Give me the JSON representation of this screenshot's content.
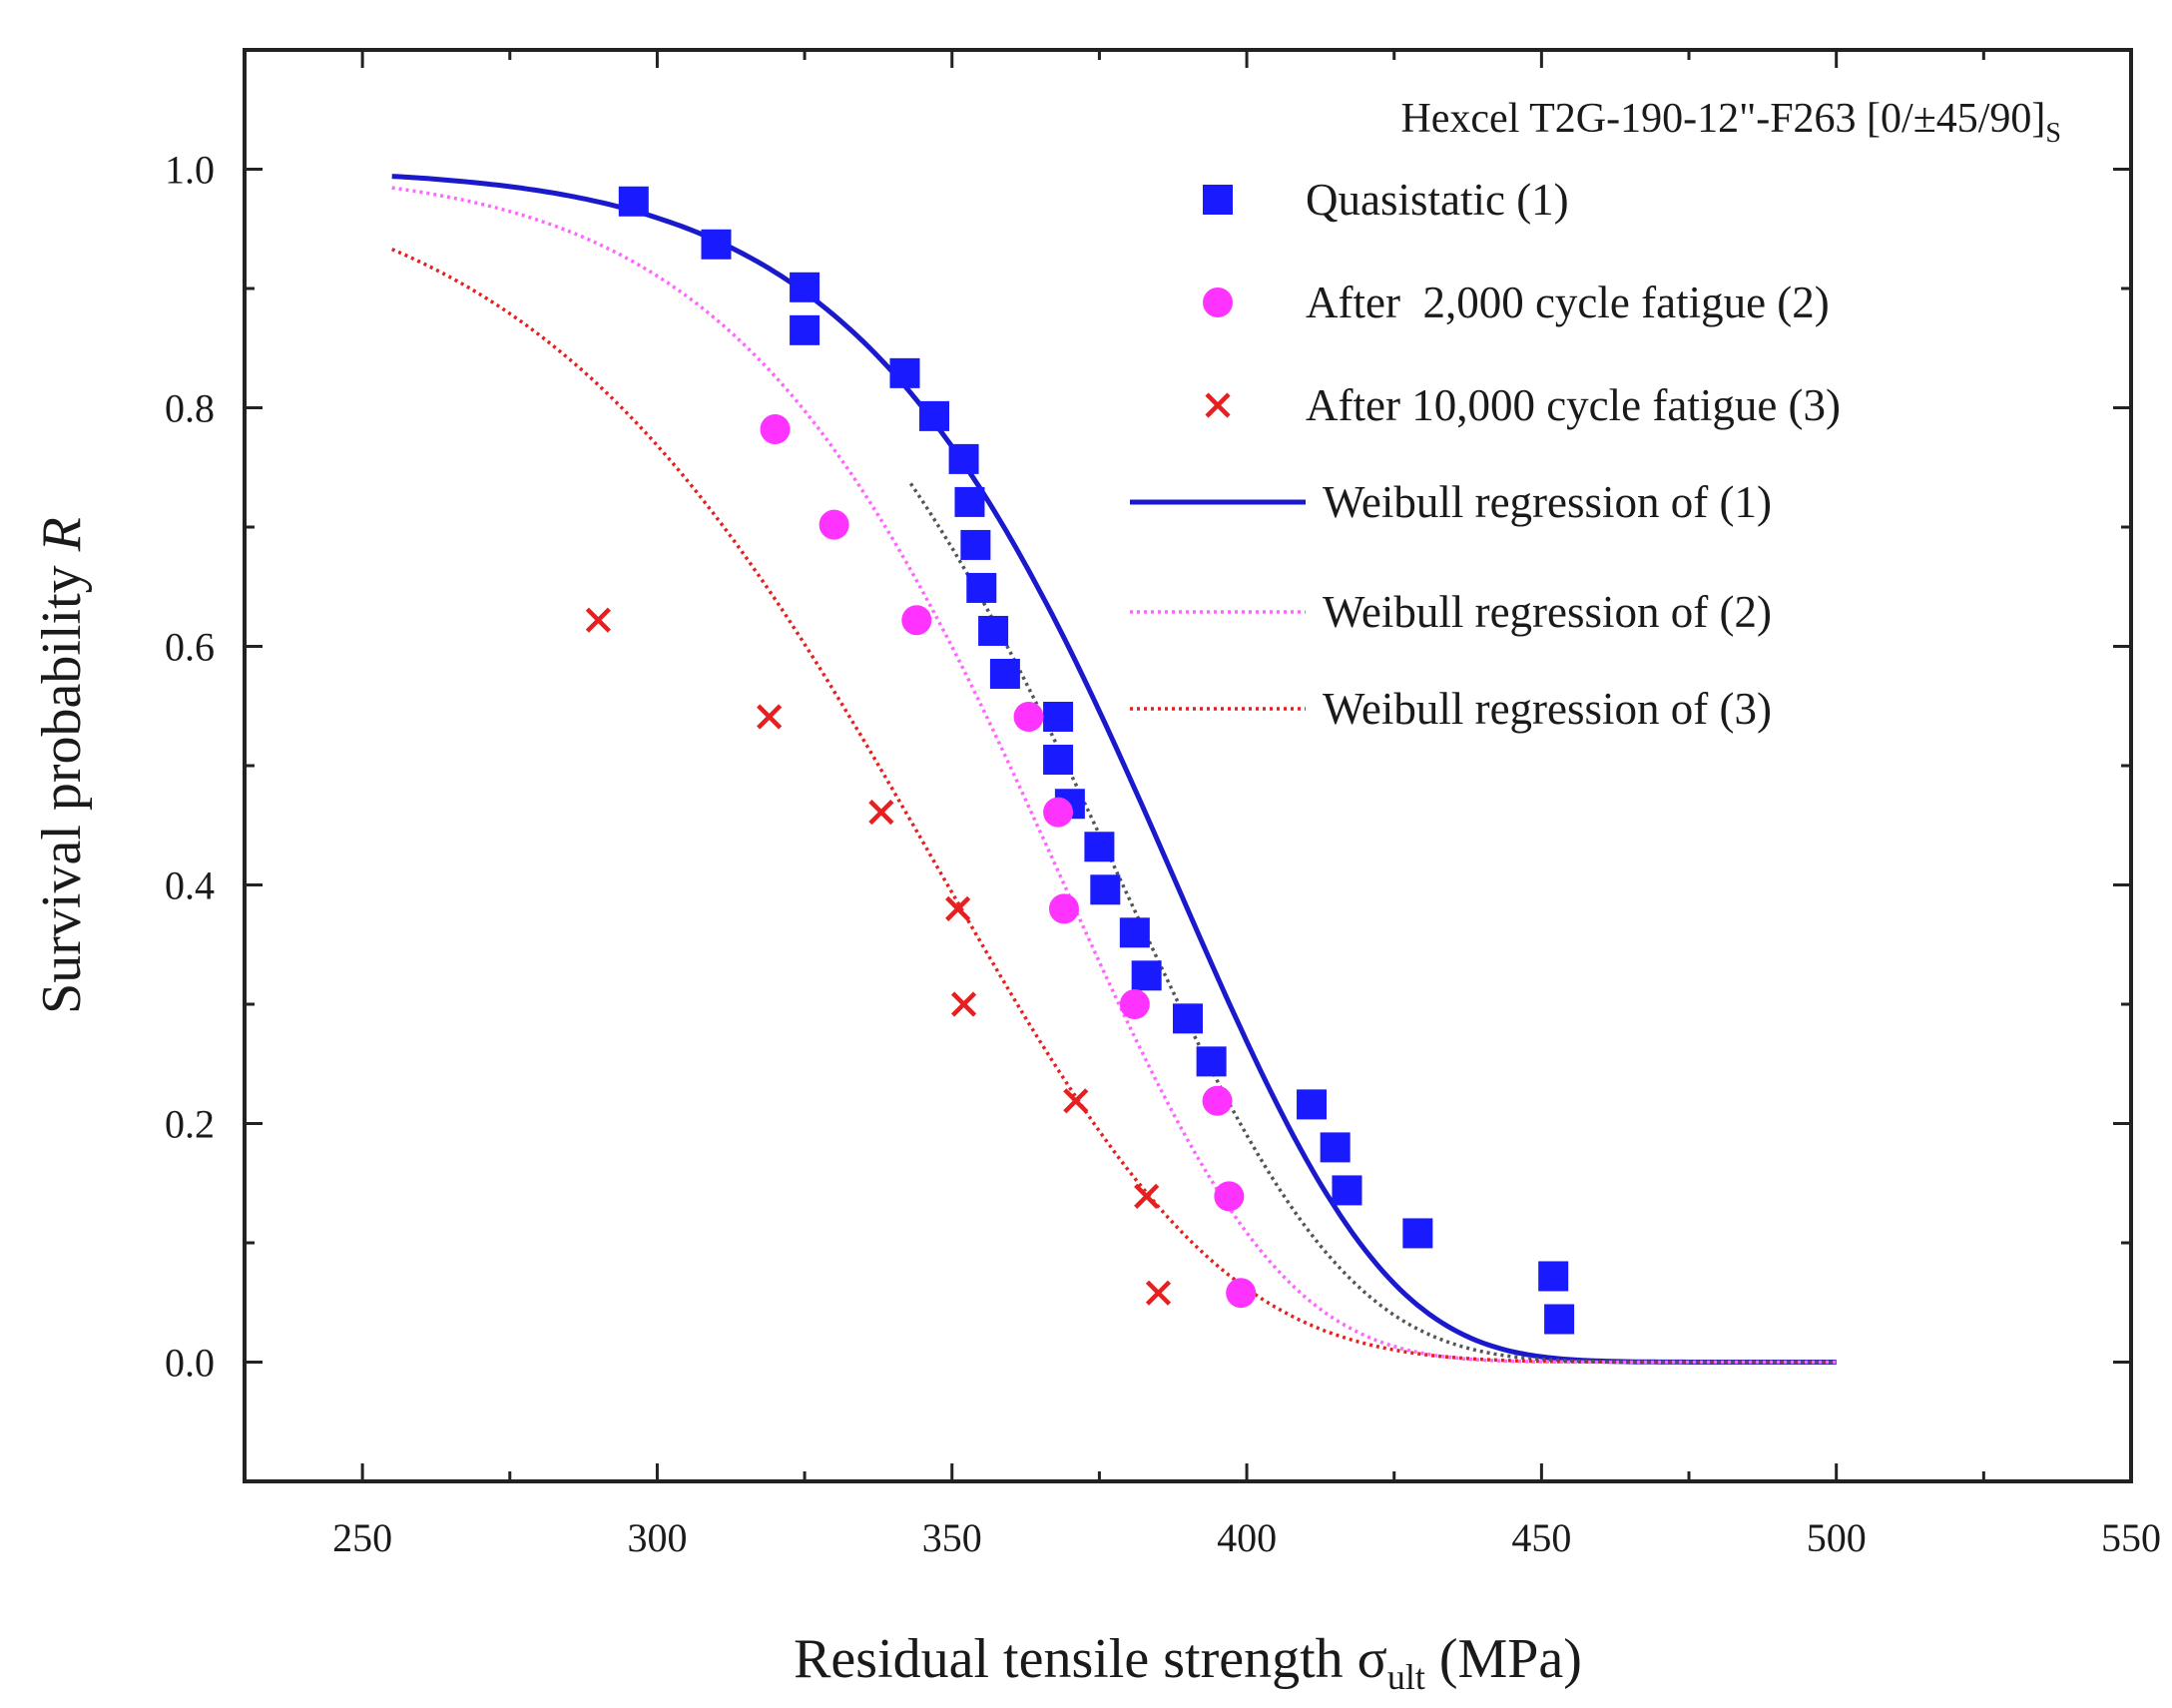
{
  "chart_data": {
    "type": "scatter",
    "xlabel": "Residual tensile strength σ",
    "xlabel_sub": "ult",
    "xlabel_unit": " (MPa)",
    "ylabel": "Survival probability ",
    "ylabel_italic": "R",
    "xlim": [
      230,
      550
    ],
    "ylim": [
      -0.1,
      1.1
    ],
    "xticks": [
      "250",
      "300",
      "350",
      "400",
      "450",
      "500",
      "550"
    ],
    "yticks": [
      "0.0",
      "0.2",
      "0.4",
      "0.6",
      "0.8",
      "1.0"
    ],
    "legend_title": "Hexcel T2G-190-12\"-F263 [0/±45/90]",
    "legend_title_sub": "S",
    "legend_position": "top-right",
    "grid": false,
    "series": [
      {
        "name": "Quasistatic (1)",
        "kind": "markers",
        "marker": "square",
        "color": "#1a1aff",
        "points": [
          [
            296,
            0.973
          ],
          [
            310,
            0.937
          ],
          [
            325,
            0.901
          ],
          [
            325,
            0.865
          ],
          [
            342,
            0.829
          ],
          [
            347,
            0.793
          ],
          [
            352,
            0.757
          ],
          [
            353,
            0.721
          ],
          [
            354,
            0.685
          ],
          [
            355,
            0.649
          ],
          [
            357,
            0.613
          ],
          [
            359,
            0.577
          ],
          [
            368,
            0.541
          ],
          [
            368,
            0.505
          ],
          [
            370,
            0.468
          ],
          [
            375,
            0.432
          ],
          [
            376,
            0.396
          ],
          [
            381,
            0.36
          ],
          [
            383,
            0.324
          ],
          [
            390,
            0.288
          ],
          [
            394,
            0.252
          ],
          [
            411,
            0.216
          ],
          [
            415,
            0.18
          ],
          [
            417,
            0.144
          ],
          [
            429,
            0.108
          ],
          [
            452,
            0.072
          ],
          [
            453,
            0.036
          ]
        ]
      },
      {
        "name": "After  2,000 cycle fatigue (2)",
        "kind": "markers",
        "marker": "circle",
        "color": "#ff33ff",
        "points": [
          [
            320,
            0.782
          ],
          [
            330,
            0.702
          ],
          [
            344,
            0.622
          ],
          [
            363,
            0.541
          ],
          [
            368,
            0.461
          ],
          [
            369,
            0.38
          ],
          [
            381,
            0.3
          ],
          [
            395,
            0.219
          ],
          [
            397,
            0.139
          ],
          [
            399,
            0.058
          ]
        ]
      },
      {
        "name": "After 10,000 cycle fatigue (3)",
        "kind": "markers",
        "marker": "x",
        "color": "#e62020",
        "points": [
          [
            290,
            0.622
          ],
          [
            319,
            0.541
          ],
          [
            338,
            0.461
          ],
          [
            351,
            0.38
          ],
          [
            352,
            0.3
          ],
          [
            371,
            0.219
          ],
          [
            383,
            0.139
          ],
          [
            385,
            0.058
          ]
        ]
      },
      {
        "name": "Weibull regression of (1)",
        "kind": "curve",
        "style": "solid",
        "color": "#1a1acc",
        "shape": 12.0,
        "scale": 391,
        "range": [
          255,
          500
        ]
      },
      {
        "name": "Weibull regression of (2)",
        "kind": "curve",
        "style": "dotted",
        "color": "#ff66ff",
        "shape": 11.0,
        "scale": 372,
        "range": [
          255,
          500
        ]
      },
      {
        "name": "Weibull regression of (3)",
        "kind": "curve",
        "style": "dotted",
        "color": "#e62020",
        "shape": 8.2,
        "scale": 353,
        "range": [
          255,
          500
        ]
      },
      {
        "kind": "curve",
        "style": "dotted",
        "color": "#555555",
        "shape": 11.0,
        "scale": 382,
        "range": [
          343,
          500
        ]
      }
    ]
  }
}
